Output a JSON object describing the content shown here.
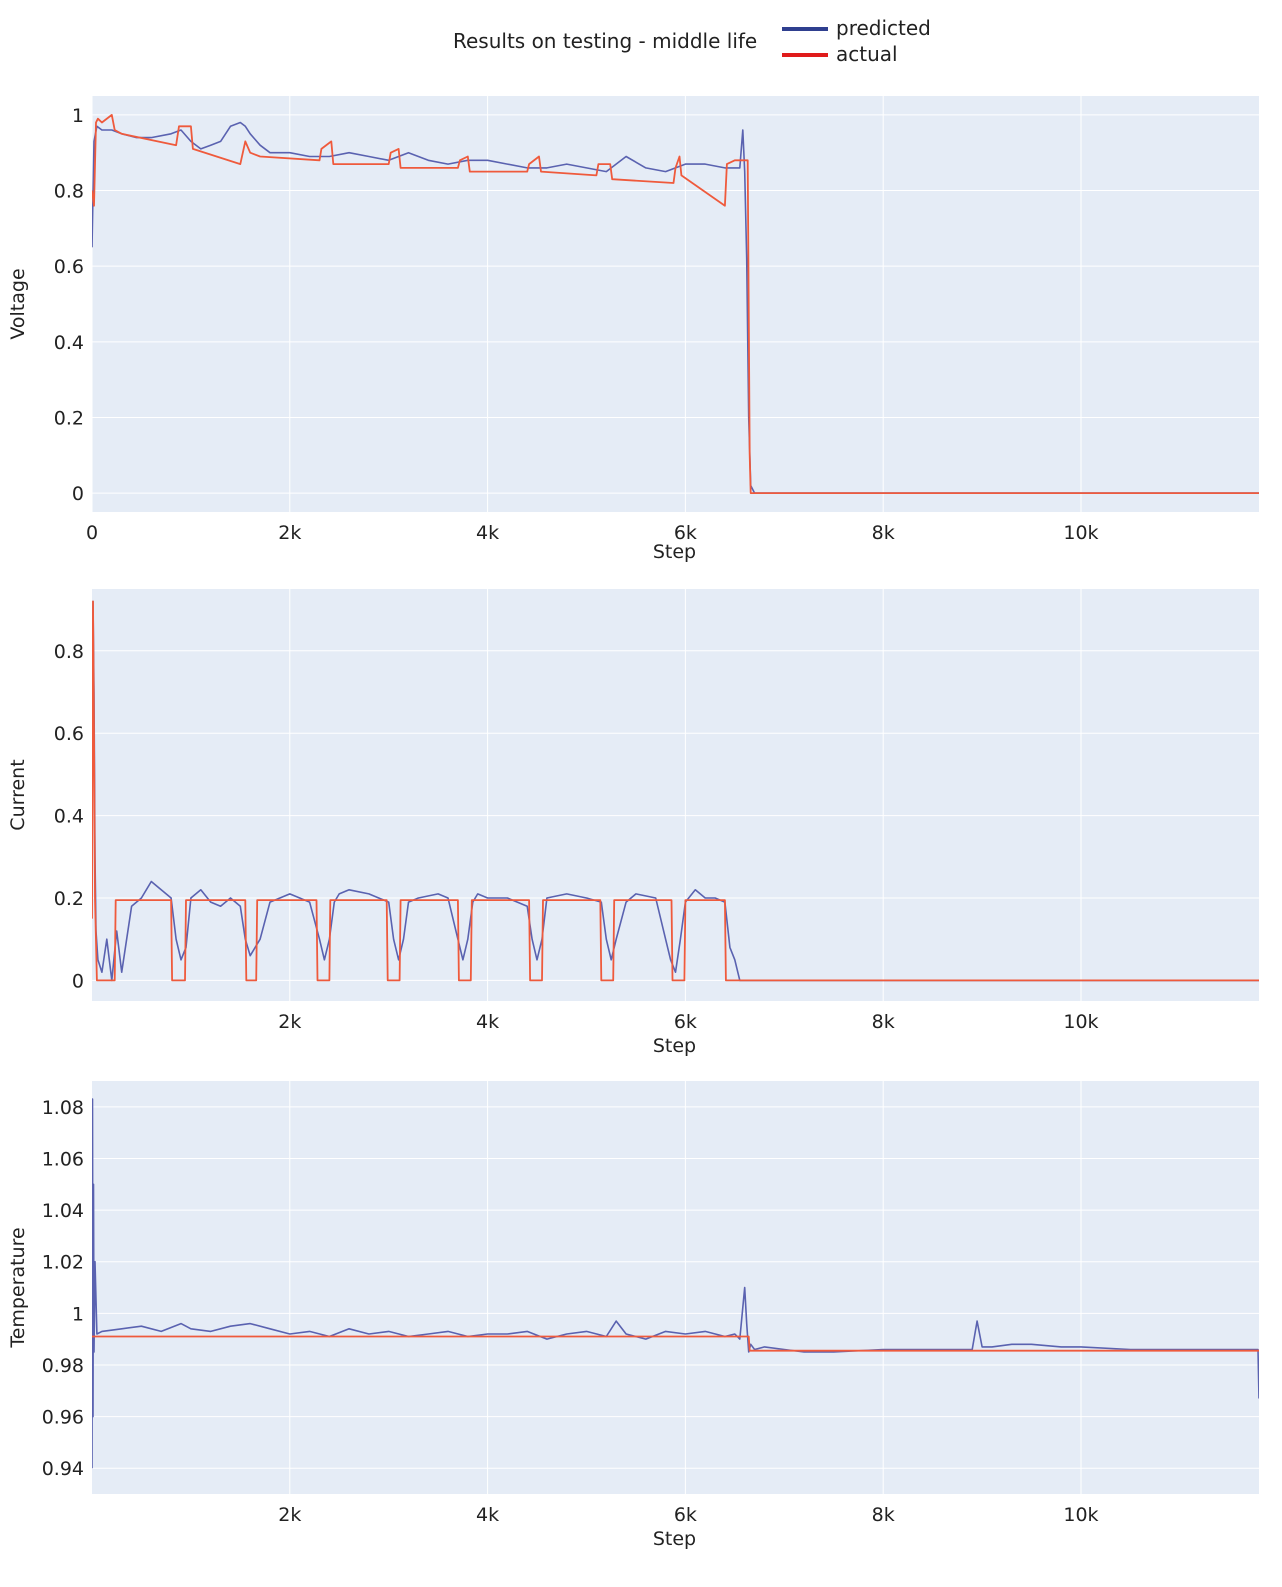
{
  "title": "Results on testing - middle life",
  "legend": {
    "predicted": "predicted",
    "actual": "actual"
  },
  "colors": {
    "predicted": "#5a62b0",
    "actual": "#ef5a3c",
    "plot_bg": "#e5ecf6",
    "grid": "#ffffff",
    "legend_predicted": "#2f3f8f",
    "legend_actual": "#e01b1b"
  },
  "chart_data": [
    {
      "type": "line",
      "xlabel": "Step",
      "ylabel": "Voltage",
      "xlim": [
        0,
        11800
      ],
      "ylim": [
        -0.05,
        1.05
      ],
      "xticks": [
        0,
        2000,
        4000,
        6000,
        8000,
        10000
      ],
      "xtick_labels": [
        "0",
        "2k",
        "4k",
        "6k",
        "8k",
        "10k"
      ],
      "yticks": [
        0,
        0.2,
        0.4,
        0.6,
        0.8,
        1
      ],
      "ytick_labels": [
        "0",
        "0.2",
        "0.4",
        "0.6",
        "0.8",
        "1"
      ],
      "grid": true,
      "series": [
        {
          "name": "predicted",
          "x": [
            0,
            20,
            50,
            100,
            200,
            300,
            450,
            600,
            800,
            900,
            1000,
            1100,
            1200,
            1300,
            1400,
            1500,
            1550,
            1600,
            1700,
            1800,
            2000,
            2200,
            2400,
            2600,
            2800,
            3000,
            3200,
            3400,
            3600,
            3800,
            4000,
            4200,
            4400,
            4600,
            4800,
            5000,
            5200,
            5400,
            5600,
            5800,
            6000,
            6200,
            6400,
            6500,
            6550,
            6580,
            6600,
            6620,
            6640,
            6660,
            6700,
            8000,
            10000,
            11800
          ],
          "y": [
            0.65,
            0.93,
            0.97,
            0.96,
            0.96,
            0.95,
            0.94,
            0.94,
            0.95,
            0.96,
            0.93,
            0.91,
            0.92,
            0.93,
            0.97,
            0.98,
            0.97,
            0.95,
            0.92,
            0.9,
            0.9,
            0.89,
            0.89,
            0.9,
            0.89,
            0.88,
            0.9,
            0.88,
            0.87,
            0.88,
            0.88,
            0.87,
            0.86,
            0.86,
            0.87,
            0.86,
            0.85,
            0.89,
            0.86,
            0.85,
            0.87,
            0.87,
            0.86,
            0.86,
            0.86,
            0.96,
            0.85,
            0.62,
            0.2,
            0.02,
            0.0,
            0.0,
            0.0,
            0.0
          ]
        },
        {
          "name": "actual",
          "x": [
            0,
            20,
            40,
            60,
            100,
            200,
            230,
            300,
            850,
            880,
            1000,
            1020,
            1500,
            1550,
            1600,
            1700,
            2300,
            2320,
            2420,
            2440,
            3000,
            3020,
            3100,
            3120,
            3700,
            3720,
            3800,
            3820,
            4400,
            4420,
            4520,
            4540,
            5100,
            5120,
            5240,
            5260,
            5880,
            5900,
            5940,
            5960,
            6400,
            6420,
            6500,
            6630,
            6650,
            6660,
            11800
          ],
          "y": [
            0.8,
            0.76,
            0.98,
            0.99,
            0.98,
            1.0,
            0.96,
            0.95,
            0.92,
            0.97,
            0.97,
            0.91,
            0.87,
            0.93,
            0.9,
            0.89,
            0.88,
            0.91,
            0.93,
            0.87,
            0.87,
            0.9,
            0.91,
            0.86,
            0.86,
            0.88,
            0.89,
            0.85,
            0.85,
            0.87,
            0.89,
            0.85,
            0.84,
            0.87,
            0.87,
            0.83,
            0.82,
            0.86,
            0.89,
            0.84,
            0.76,
            0.87,
            0.88,
            0.88,
            0.1,
            0.0,
            0.0
          ]
        }
      ]
    },
    {
      "type": "line",
      "xlabel": "Step",
      "ylabel": "Current",
      "xlim": [
        0,
        11800
      ],
      "ylim": [
        -0.05,
        0.95
      ],
      "xticks": [
        2000,
        4000,
        6000,
        8000,
        10000
      ],
      "xtick_labels": [
        "2k",
        "4k",
        "6k",
        "8k",
        "10k"
      ],
      "yticks": [
        0,
        0.2,
        0.4,
        0.6,
        0.8
      ],
      "ytick_labels": [
        "0",
        "0.2",
        "0.4",
        "0.6",
        "0.8"
      ],
      "grid": true,
      "series": [
        {
          "name": "predicted",
          "x": [
            0,
            10,
            20,
            30,
            40,
            60,
            100,
            150,
            200,
            250,
            300,
            400,
            500,
            600,
            700,
            800,
            850,
            900,
            950,
            1000,
            1100,
            1200,
            1300,
            1400,
            1500,
            1550,
            1600,
            1700,
            1800,
            1900,
            2000,
            2100,
            2200,
            2300,
            2350,
            2400,
            2450,
            2500,
            2600,
            2800,
            3000,
            3050,
            3100,
            3150,
            3200,
            3300,
            3500,
            3600,
            3700,
            3750,
            3800,
            3850,
            3900,
            4000,
            4200,
            4400,
            4450,
            4500,
            4550,
            4600,
            4800,
            5000,
            5150,
            5200,
            5250,
            5300,
            5400,
            5500,
            5700,
            5800,
            5850,
            5900,
            5950,
            6000,
            6100,
            6200,
            6300,
            6400,
            6450,
            6500,
            6550,
            11800
          ],
          "y": [
            0.52,
            0.92,
            0.7,
            0.3,
            0.12,
            0.05,
            0.02,
            0.1,
            0.0,
            0.12,
            0.02,
            0.18,
            0.2,
            0.24,
            0.22,
            0.2,
            0.1,
            0.05,
            0.08,
            0.2,
            0.22,
            0.19,
            0.18,
            0.2,
            0.18,
            0.1,
            0.06,
            0.1,
            0.19,
            0.2,
            0.21,
            0.2,
            0.19,
            0.1,
            0.05,
            0.1,
            0.19,
            0.21,
            0.22,
            0.21,
            0.19,
            0.1,
            0.05,
            0.1,
            0.19,
            0.2,
            0.21,
            0.2,
            0.1,
            0.05,
            0.1,
            0.19,
            0.21,
            0.2,
            0.2,
            0.18,
            0.1,
            0.05,
            0.1,
            0.2,
            0.21,
            0.2,
            0.19,
            0.1,
            0.05,
            0.1,
            0.19,
            0.21,
            0.2,
            0.1,
            0.05,
            0.02,
            0.1,
            0.19,
            0.22,
            0.2,
            0.2,
            0.19,
            0.08,
            0.05,
            0.0,
            0.0
          ]
        },
        {
          "name": "actual",
          "x": [
            0,
            10,
            20,
            30,
            50,
            230,
            240,
            800,
            810,
            940,
            950,
            1550,
            1560,
            1660,
            1670,
            2270,
            2280,
            2400,
            2410,
            2980,
            2990,
            3110,
            3120,
            3700,
            3710,
            3830,
            3840,
            4420,
            4430,
            4550,
            4560,
            5140,
            5150,
            5270,
            5280,
            5860,
            5870,
            5990,
            6000,
            6400,
            6410,
            6530,
            6540,
            11800
          ],
          "y": [
            0.15,
            0.92,
            0.6,
            0.2,
            0.0,
            0.0,
            0.195,
            0.195,
            0.0,
            0.0,
            0.195,
            0.195,
            0.0,
            0.0,
            0.195,
            0.195,
            0.0,
            0.0,
            0.195,
            0.195,
            0.0,
            0.0,
            0.195,
            0.195,
            0.0,
            0.0,
            0.195,
            0.195,
            0.0,
            0.0,
            0.195,
            0.195,
            0.0,
            0.0,
            0.195,
            0.195,
            0.0,
            0.0,
            0.195,
            0.195,
            0.0,
            0.0,
            0.0,
            0.0
          ]
        }
      ]
    },
    {
      "type": "line",
      "xlabel": "Step",
      "ylabel": "Temperature",
      "xlim": [
        0,
        11800
      ],
      "ylim": [
        0.93,
        1.09
      ],
      "xticks": [
        2000,
        4000,
        6000,
        8000,
        10000
      ],
      "xtick_labels": [
        "2k",
        "4k",
        "6k",
        "8k",
        "10k"
      ],
      "yticks": [
        0.94,
        0.96,
        0.98,
        1,
        1.02,
        1.04,
        1.06,
        1.08
      ],
      "ytick_labels": [
        "0.94",
        "0.96",
        "0.98",
        "1",
        "1.02",
        "1.04",
        "1.06",
        "1.08"
      ],
      "grid": true,
      "series": [
        {
          "name": "predicted",
          "x": [
            0,
            5,
            10,
            15,
            20,
            30,
            50,
            100,
            300,
            500,
            700,
            900,
            1000,
            1200,
            1400,
            1600,
            1800,
            2000,
            2200,
            2400,
            2600,
            2800,
            3000,
            3200,
            3400,
            3600,
            3800,
            4000,
            4200,
            4400,
            4600,
            4800,
            5000,
            5200,
            5300,
            5400,
            5600,
            5800,
            6000,
            6200,
            6400,
            6500,
            6550,
            6600,
            6620,
            6640,
            6660,
            6700,
            6800,
            7000,
            7200,
            7500,
            8000,
            8500,
            8900,
            8950,
            9000,
            9100,
            9300,
            9500,
            9800,
            10000,
            10500,
            11000,
            11500,
            11790,
            11800
          ],
          "y": [
            0.94,
            1.083,
            0.96,
            1.05,
            0.985,
            1.02,
            0.992,
            0.993,
            0.994,
            0.995,
            0.993,
            0.996,
            0.994,
            0.993,
            0.995,
            0.996,
            0.994,
            0.992,
            0.993,
            0.991,
            0.994,
            0.992,
            0.993,
            0.991,
            0.992,
            0.993,
            0.991,
            0.992,
            0.992,
            0.993,
            0.99,
            0.992,
            0.993,
            0.991,
            0.997,
            0.992,
            0.99,
            0.993,
            0.992,
            0.993,
            0.991,
            0.992,
            0.99,
            1.01,
            0.996,
            0.985,
            0.988,
            0.986,
            0.987,
            0.986,
            0.985,
            0.985,
            0.986,
            0.986,
            0.986,
            0.997,
            0.987,
            0.987,
            0.988,
            0.988,
            0.987,
            0.987,
            0.986,
            0.986,
            0.986,
            0.986,
            0.967
          ]
        },
        {
          "name": "actual",
          "x": [
            0,
            6640,
            6650,
            11800
          ],
          "y": [
            0.991,
            0.991,
            0.9855,
            0.9855
          ]
        }
      ]
    }
  ]
}
